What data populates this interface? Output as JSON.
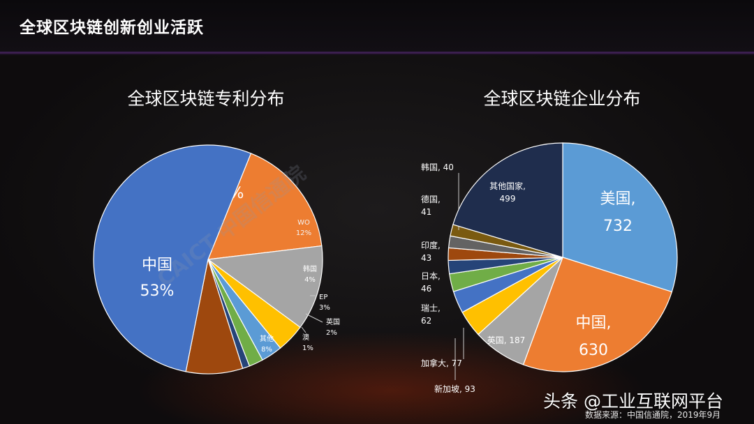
{
  "header": {
    "title": "全球区块链创新创业活跃"
  },
  "footer": {
    "platform": "头条 @工业互联网平台",
    "source": "数据来源：中国信通院，2019年9月"
  },
  "watermark": {
    "text": "CAICT 中国信通院"
  },
  "colors": {
    "china_blue": "#4472c4",
    "usa_orange": "#ed7d31",
    "gray": "#a5a5a5",
    "yellow": "#ffc000",
    "lightblue": "#5b9bd5",
    "green": "#70ad47",
    "navy": "#264478",
    "brown": "#9e480e",
    "darknavy": "#1f2d4d",
    "darkbrown": "#5a3a10",
    "sky": "#5b9bd5"
  },
  "chart_data": [
    {
      "type": "pie",
      "title": "全球区块链专利分布",
      "slices": [
        {
          "label": "美国",
          "value_label": "17%",
          "value": 17,
          "color": "#ed7d31"
        },
        {
          "label": "WO",
          "value_label": "12%",
          "value": 12,
          "color": "#a5a5a5"
        },
        {
          "label": "韩国",
          "value_label": "4%",
          "value": 4,
          "color": "#ffc000"
        },
        {
          "label": "EP",
          "value_label": "3%",
          "value": 3,
          "color": "#5b9bd5"
        },
        {
          "label": "英国",
          "value_label": "2%",
          "value": 2,
          "color": "#70ad47"
        },
        {
          "label": "澳",
          "value_label": "1%",
          "value": 1,
          "color": "#264478"
        },
        {
          "label": "其他",
          "value_label": "8%",
          "value": 8,
          "color": "#9e480e"
        },
        {
          "label": "中国",
          "value_label": "53%",
          "value": 53,
          "color": "#4472c4"
        }
      ]
    },
    {
      "type": "pie",
      "title": "全球区块链企业分布",
      "slices": [
        {
          "label": "美国,",
          "value_label": "732",
          "value": 732,
          "color": "#5b9bd5"
        },
        {
          "label": "中国,",
          "value_label": "630",
          "value": 630,
          "color": "#ed7d31"
        },
        {
          "label": "英国, 187",
          "value_label": "",
          "value": 187,
          "color": "#a5a5a5"
        },
        {
          "label": "新加坡, 93",
          "value_label": "",
          "value": 93,
          "color": "#ffc000"
        },
        {
          "label": "加拿大, 77",
          "value_label": "",
          "value": 77,
          "color": "#4472c4"
        },
        {
          "label": "瑞士,",
          "value_label": "62",
          "value": 62,
          "color": "#70ad47"
        },
        {
          "label": "日本,",
          "value_label": "46",
          "value": 46,
          "color": "#264478"
        },
        {
          "label": "印度,",
          "value_label": "43",
          "value": 43,
          "color": "#9e480e"
        },
        {
          "label": "德国,",
          "value_label": "41",
          "value": 41,
          "color": "#636363"
        },
        {
          "label": "韩国, 40",
          "value_label": "",
          "value": 40,
          "color": "#7a5a10"
        },
        {
          "label": "其他国家,",
          "value_label": "499",
          "value": 499,
          "color": "#1f2d4d"
        }
      ]
    }
  ]
}
